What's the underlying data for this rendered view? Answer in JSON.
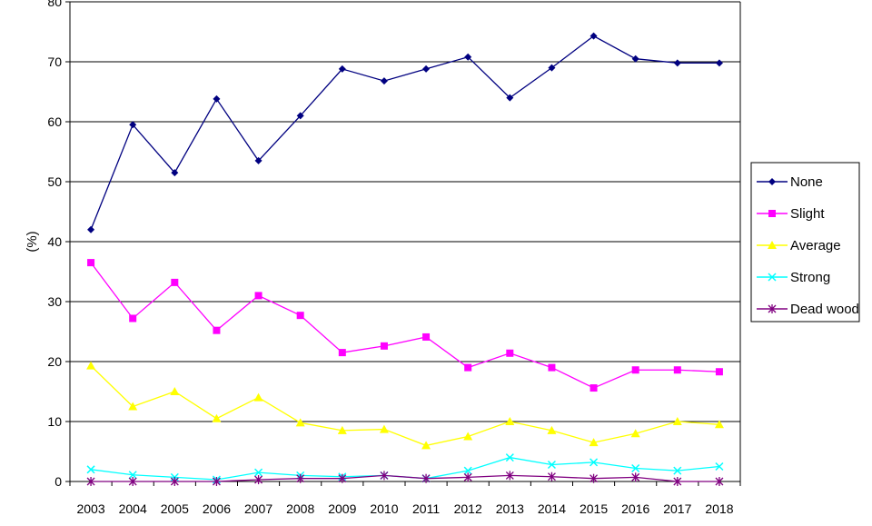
{
  "chart_data": {
    "type": "line",
    "title": "",
    "xlabel": "",
    "ylabel": "(%)",
    "ylim": [
      0,
      80
    ],
    "yticks": [
      0,
      10,
      20,
      30,
      40,
      50,
      60,
      70,
      80
    ],
    "grid": "horizontal",
    "legend_position": "right",
    "x": [
      "2003",
      "2004",
      "2005",
      "2006",
      "2007",
      "2008",
      "2009",
      "2010",
      "2011",
      "2012",
      "2013",
      "2014",
      "2015",
      "2016",
      "2017",
      "2018"
    ],
    "series": [
      {
        "name": "None",
        "color": "#000080",
        "marker": "diamond",
        "values": [
          42,
          59.5,
          51.5,
          63.8,
          53.5,
          61,
          68.8,
          66.8,
          68.8,
          70.8,
          64,
          69,
          74.3,
          70.5,
          69.8,
          69.8
        ]
      },
      {
        "name": "Slight",
        "color": "#ff00ff",
        "marker": "square",
        "values": [
          36.5,
          27.2,
          33.2,
          25.2,
          31,
          27.7,
          21.5,
          22.6,
          24.1,
          19,
          21.4,
          19,
          15.6,
          18.6,
          18.6,
          18.3
        ]
      },
      {
        "name": "Average",
        "color": "#ffff00",
        "marker": "triangle",
        "values": [
          19.3,
          12.5,
          15,
          10.5,
          14,
          9.8,
          8.5,
          8.7,
          6,
          7.5,
          10,
          8.5,
          6.5,
          8,
          10,
          9.5
        ]
      },
      {
        "name": "Strong",
        "color": "#00ffff",
        "marker": "x",
        "values": [
          2,
          1.1,
          0.7,
          0.3,
          1.5,
          1,
          0.8,
          1,
          0.5,
          1.8,
          4,
          2.8,
          3.2,
          2.2,
          1.8,
          2.5
        ]
      },
      {
        "name": "Dead wood",
        "color": "#800080",
        "marker": "star",
        "values": [
          0,
          0,
          0,
          0,
          0.3,
          0.5,
          0.5,
          1,
          0.5,
          0.7,
          1,
          0.8,
          0.5,
          0.7,
          0,
          0
        ]
      }
    ]
  }
}
